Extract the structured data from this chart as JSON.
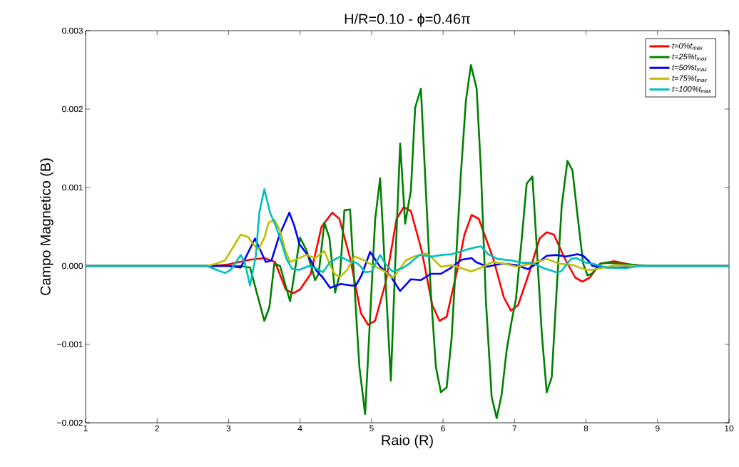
{
  "chart_data": {
    "type": "line",
    "title": "H/R=0.10 - ϕ=0.46π",
    "xlabel": "Raio (R)",
    "ylabel": "Campo Magnetico (B)",
    "xlim": [
      1,
      10
    ],
    "xticks": [
      1,
      2,
      3,
      4,
      5,
      6,
      7,
      8,
      9,
      10
    ],
    "ylim": [
      -0.002,
      0.003
    ],
    "yticks": [
      {
        "value": -0.002,
        "label": "−0.002"
      },
      {
        "value": -0.001,
        "label": "−0.001"
      },
      {
        "value": 0,
        "label": "0.000"
      },
      {
        "value": 0.001,
        "label": "0.001"
      },
      {
        "value": 0.002,
        "label": "0.002"
      },
      {
        "value": 0.003,
        "label": "0.003"
      }
    ],
    "grid": false,
    "legend": "top right",
    "marker": "none",
    "line_style": "solid",
    "series": [
      {
        "name": "t=0%t$_{max}$",
        "color": "#ff0000",
        "x": [
          1,
          2.8,
          3.0,
          3.3,
          3.5,
          3.65,
          3.8,
          3.9,
          4.0,
          4.15,
          4.3,
          4.45,
          4.55,
          4.7,
          4.85,
          4.95,
          5.05,
          5.2,
          5.35,
          5.45,
          5.55,
          5.7,
          5.85,
          5.95,
          6.05,
          6.2,
          6.3,
          6.4,
          6.5,
          6.7,
          6.85,
          6.95,
          7.05,
          7.2,
          7.35,
          7.45,
          7.55,
          7.7,
          7.85,
          7.95,
          8.05,
          8.2,
          8.4,
          8.6,
          8.8,
          10
        ],
        "values": [
          0,
          0,
          2e-05,
          8e-05,
          0.0001,
          5e-05,
          -0.0003,
          -0.00035,
          -0.0003,
          -0.0001,
          0.0005,
          0.00068,
          0.0006,
          0.0001,
          -0.0006,
          -0.00075,
          -0.0007,
          -0.0002,
          0.0006,
          0.00075,
          0.0007,
          0.0002,
          -0.0005,
          -0.0007,
          -0.00065,
          -5e-05,
          0.0004,
          0.00065,
          0.0006,
          0.0001,
          -0.0004,
          -0.00057,
          -0.0005,
          -0.0001,
          0.00035,
          0.00043,
          0.0004,
          0.0001,
          -0.00015,
          -0.0002,
          -0.00015,
          3e-05,
          6e-05,
          2e-05,
          0,
          0
        ]
      },
      {
        "name": "t=25%t$_{max}$",
        "color": "#008000",
        "x": [
          1,
          3.0,
          3.17,
          3.3,
          3.5,
          3.57,
          3.64,
          3.72,
          3.86,
          4.0,
          4.09,
          4.21,
          4.26,
          4.34,
          4.41,
          4.49,
          4.56,
          4.62,
          4.7,
          4.79,
          4.83,
          4.91,
          5.05,
          5.12,
          5.27,
          5.33,
          5.4,
          5.47,
          5.55,
          5.61,
          5.69,
          5.83,
          5.9,
          5.97,
          6.05,
          6.12,
          6.25,
          6.32,
          6.39,
          6.47,
          6.53,
          6.6,
          6.68,
          6.75,
          6.82,
          6.89,
          6.96,
          7.02,
          7.1,
          7.17,
          7.25,
          7.31,
          7.38,
          7.45,
          7.52,
          7.59,
          7.66,
          7.74,
          7.81,
          7.88,
          7.96,
          8.02,
          8.08,
          8.2,
          8.3,
          8.5,
          8.7,
          8.9,
          10
        ],
        "values": [
          0,
          0,
          0,
          -2e-05,
          -0.0007,
          -0.00053,
          3e-05,
          0,
          -0.00045,
          0.00036,
          0.0002,
          -0.00018,
          -0.0001,
          0.00055,
          0.00036,
          -0.00034,
          -9e-05,
          0.00071,
          0.00072,
          -0.0007,
          -0.00129,
          -0.00189,
          0.00059,
          0.00112,
          -0.00146,
          0,
          0.00156,
          0.00054,
          0.00096,
          0.00202,
          0.00226,
          -0.00035,
          -0.00129,
          -0.00161,
          -0.00155,
          -0.00092,
          0.00118,
          0.00211,
          0.00256,
          0.00226,
          0.00122,
          -0.00045,
          -0.00167,
          -0.00194,
          -0.00164,
          -0.00107,
          -0.0007,
          -0.00042,
          0.00034,
          0.00105,
          0.00114,
          0.00025,
          -0.00085,
          -0.00161,
          -0.00142,
          -0.00029,
          0.00077,
          0.00134,
          0.00122,
          0.00065,
          3e-05,
          -0.00012,
          -0.0001,
          3e-05,
          4e-05,
          3e-05,
          1e-05,
          0,
          0
        ]
      },
      {
        "name": "t=50%t$_{max}$",
        "color": "#0000ff",
        "x": [
          1,
          3.0,
          3.17,
          3.37,
          3.52,
          3.6,
          3.71,
          3.85,
          3.92,
          3.99,
          4.12,
          4.22,
          4.32,
          4.42,
          4.57,
          4.72,
          4.78,
          4.86,
          4.98,
          5.12,
          5.26,
          5.35,
          5.4,
          5.55,
          5.69,
          5.83,
          5.97,
          6.1,
          6.26,
          6.4,
          6.46,
          6.62,
          6.82,
          7.03,
          7.19,
          7.31,
          7.45,
          7.58,
          7.72,
          7.88,
          7.96,
          8.05,
          8.09,
          8.3,
          8.5,
          8.7,
          10
        ],
        "values": [
          0,
          0,
          -2e-05,
          0.00035,
          5e-05,
          7e-05,
          0.00039,
          0.00068,
          0.00051,
          0.00028,
          0.00012,
          -5e-05,
          -0.00015,
          -0.00028,
          -0.00023,
          -0.00025,
          -0.00025,
          -0.00012,
          0.00018,
          -1e-05,
          -0.00012,
          -0.00025,
          -0.00032,
          -0.00017,
          -0.00018,
          -0.0001,
          -0.0001,
          -3e-05,
          8e-05,
          0.0001,
          5e-05,
          -1e-05,
          3e-05,
          1e-05,
          -4e-05,
          3e-05,
          0.00013,
          0.00014,
          0.00012,
          0.00015,
          0.00013,
          5e-05,
          0,
          -2e-05,
          -2e-05,
          0,
          0
        ]
      },
      {
        "name": "t=75%t$_{max}$",
        "color": "#bfbf00",
        "x": [
          1,
          2.7,
          2.83,
          2.95,
          3.07,
          3.17,
          3.27,
          3.35,
          3.42,
          3.5,
          3.56,
          3.64,
          3.72,
          3.79,
          3.86,
          3.96,
          4.09,
          4.21,
          4.34,
          4.42,
          4.49,
          4.56,
          4.66,
          4.76,
          4.9,
          5.05,
          5.19,
          5.28,
          5.33,
          5.48,
          5.6,
          5.76,
          5.85,
          5.97,
          6.12,
          6.26,
          6.39,
          6.51,
          6.69,
          6.86,
          7.03,
          7.24,
          7.45,
          7.62,
          7.82,
          8.0,
          8.09,
          8.42,
          8.7,
          10
        ],
        "values": [
          0,
          0,
          3e-05,
          7e-05,
          0.00025,
          0.0004,
          0.00037,
          0.00027,
          0.00021,
          0.00036,
          0.00055,
          0.00059,
          0.00045,
          0.00021,
          5e-05,
          9e-05,
          0.00014,
          0.0001,
          0.00019,
          1e-05,
          -0.00011,
          -0.00014,
          -5e-05,
          0.00012,
          7e-05,
          -1e-05,
          -7e-05,
          -0.00015,
          -0.00012,
          7e-05,
          0.00012,
          0.00016,
          0.0001,
          -1e-05,
          1e-05,
          -3e-05,
          -7e-05,
          -3e-05,
          5e-05,
          3e-05,
          -1e-05,
          3e-05,
          9e-05,
          3e-05,
          1e-05,
          -5e-05,
          -5e-05,
          1e-05,
          0,
          0
        ]
      },
      {
        "name": "t=100%t$_{max}$",
        "color": "#00bfbf",
        "x": [
          1,
          2.7,
          2.83,
          2.95,
          3.03,
          3.17,
          3.23,
          3.3,
          3.38,
          3.43,
          3.5,
          3.58,
          3.66,
          3.74,
          3.81,
          3.89,
          3.99,
          4.12,
          4.22,
          4.32,
          4.42,
          4.56,
          4.69,
          4.79,
          4.83,
          4.91,
          5.0,
          5.12,
          5.19,
          5.29,
          5.43,
          5.53,
          5.67,
          5.85,
          5.98,
          6.12,
          6.33,
          6.47,
          6.53,
          6.63,
          6.76,
          6.96,
          7.1,
          7.24,
          7.41,
          7.58,
          7.65,
          7.79,
          7.86,
          8.0,
          8.09,
          8.29,
          8.55,
          8.75,
          10
        ],
        "values": [
          0,
          0,
          -5e-05,
          -9e-05,
          -5e-05,
          0.00014,
          3e-05,
          -0.00025,
          0.00012,
          0.00068,
          0.00098,
          0.00068,
          0.00051,
          0.0003,
          9e-05,
          -4e-05,
          -5e-05,
          0,
          -3e-05,
          -8e-05,
          5e-05,
          0.00012,
          6e-05,
          4e-05,
          1e-05,
          -8e-05,
          -7e-05,
          0.00014,
          3e-05,
          -7e-05,
          -3e-05,
          3e-05,
          0.00014,
          0.00012,
          0.00014,
          0.00015,
          0.00021,
          0.00024,
          0.00025,
          0.00015,
          9e-05,
          7e-05,
          4e-05,
          4e-05,
          -3e-05,
          -8e-05,
          -7e-05,
          9e-05,
          0.0001,
          4e-05,
          3e-05,
          -2e-05,
          -3e-05,
          0,
          0
        ]
      }
    ]
  }
}
